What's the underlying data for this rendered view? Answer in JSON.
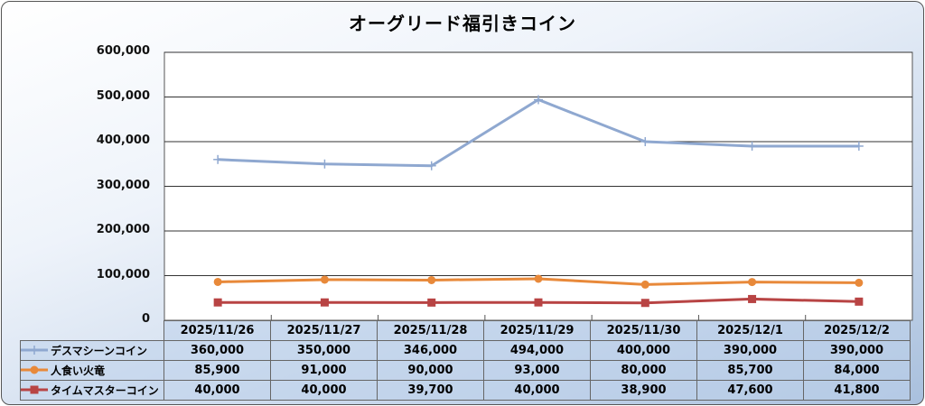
{
  "chart_data": {
    "type": "line",
    "title": "オーグリード福引きコイン",
    "categories": [
      "2025/11/26",
      "2025/11/27",
      "2025/11/28",
      "2025/11/29",
      "2025/11/30",
      "2025/12/1",
      "2025/12/2"
    ],
    "ylim": [
      0,
      600000
    ],
    "yticks": [
      "0",
      "100,000",
      "200,000",
      "300,000",
      "400,000",
      "500,000",
      "600,000"
    ],
    "grid": true,
    "legend": "data-table",
    "series": [
      {
        "name": "デスマシーンコイン",
        "color": "#8fa8d0",
        "marker": "plus",
        "values": [
          360000,
          350000,
          346000,
          494000,
          400000,
          390000,
          390000
        ],
        "labels": [
          "360,000",
          "350,000",
          "346,000",
          "494,000",
          "400,000",
          "390,000",
          "390,000"
        ]
      },
      {
        "name": "人食い火竜",
        "color": "#e8893a",
        "marker": "circle",
        "values": [
          85900,
          91000,
          90000,
          93000,
          80000,
          85700,
          84000
        ],
        "labels": [
          "85,900",
          "91,000",
          "90,000",
          "93,000",
          "80,000",
          "85,700",
          "84,000"
        ]
      },
      {
        "name": "タイムマスターコイン",
        "color": "#b84444",
        "marker": "square",
        "values": [
          40000,
          40000,
          39700,
          40000,
          38900,
          47600,
          41800
        ],
        "labels": [
          "40,000",
          "40,000",
          "39,700",
          "40,000",
          "38,900",
          "47,600",
          "41,800"
        ]
      }
    ]
  }
}
